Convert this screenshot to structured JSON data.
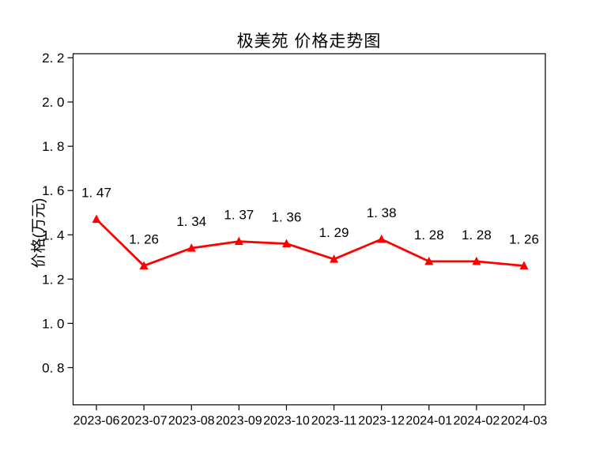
{
  "chart_data": {
    "type": "line",
    "title": "极美苑 价格走势图",
    "xlabel": "",
    "ylabel": "价格(万元)",
    "categories": [
      "2023-06",
      "2023-07",
      "2023-08",
      "2023-09",
      "2023-10",
      "2023-11",
      "2023-12",
      "2024-01",
      "2024-02",
      "2024-03"
    ],
    "series": [
      {
        "name": "价格",
        "values": [
          1.47,
          1.26,
          1.34,
          1.37,
          1.36,
          1.29,
          1.38,
          1.28,
          1.28,
          1.26
        ],
        "color": "#ff0000",
        "marker": "triangle-up",
        "line_width": 2.8
      }
    ],
    "point_labels": [
      "1. 47",
      "1. 26",
      "1. 34",
      "1. 37",
      "1. 36",
      "1. 29",
      "1. 38",
      "1. 28",
      "1. 28",
      "1. 26"
    ],
    "yticks": [
      0.8,
      1.0,
      1.2,
      1.4,
      1.6,
      1.8,
      2.0,
      2.2
    ],
    "ytick_labels": [
      "0. 8",
      "1. 0",
      "1. 2",
      "1. 4",
      "1. 6",
      "1. 8",
      "2. 0",
      "2. 2"
    ],
    "ylim": [
      0.632,
      2.218
    ],
    "grid": false,
    "legend": "none",
    "frame_color": "#000000",
    "background": "#ffffff",
    "text_color": "#000000"
  }
}
